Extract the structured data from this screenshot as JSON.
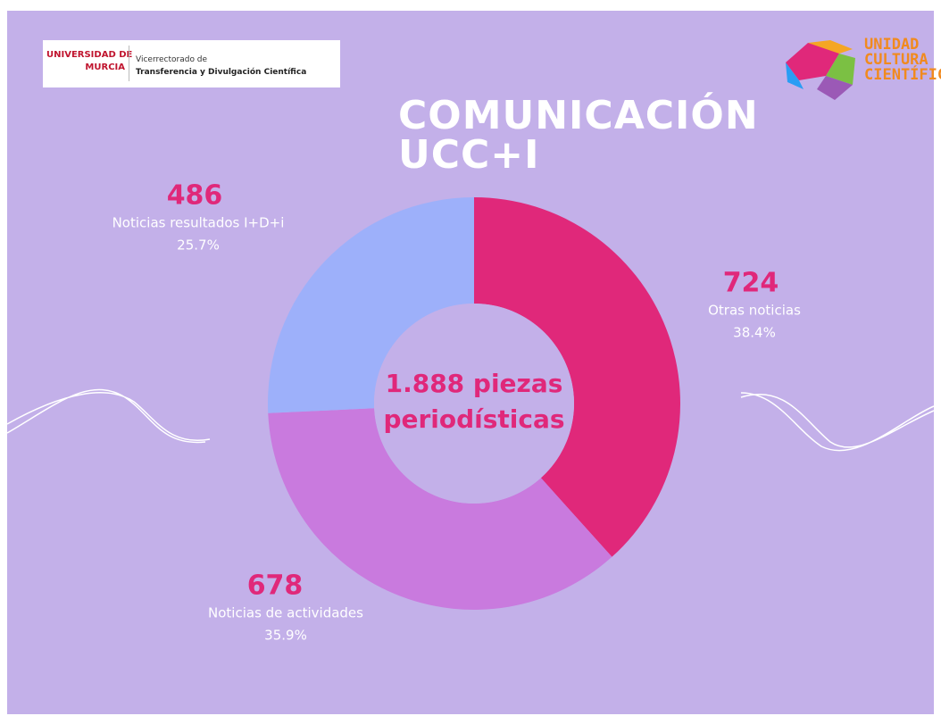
{
  "chart_data": {
    "type": "pie",
    "title": "COMUNICACIÓN UCC+I",
    "center_label": "1.888 piezas periodísticas",
    "categories": [
      "Otras noticias",
      "Noticias de actividades",
      "Noticias resultados I+D+i"
    ],
    "values": [
      724,
      678,
      486
    ],
    "shares": [
      "38.4%",
      "35.9%",
      "25.7%"
    ],
    "colors": [
      "#e0287a",
      "#c97ade",
      "#9db0fa"
    ],
    "donut": true
  },
  "logos": {
    "university": [
      "UNIVERSIDAD DE",
      "MURCIA",
      "Vicerrectorado de",
      "Transferencia y Divulgación Científica"
    ],
    "unit": "UNIDAD CULTURA CIENTÍFICA"
  }
}
